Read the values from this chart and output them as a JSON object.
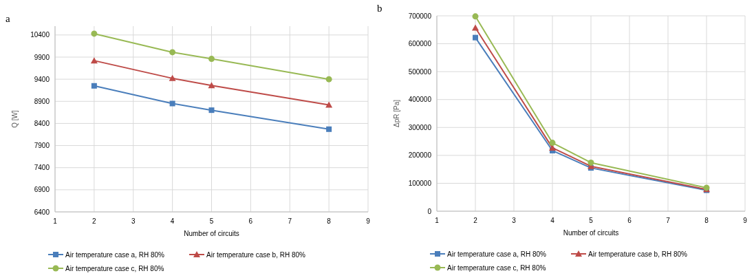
{
  "chart_data": [
    {
      "type": "line",
      "title": "a",
      "xlabel": "Number of circuits",
      "ylabel": "Q [W]",
      "x": [
        2,
        4,
        5,
        8
      ],
      "xlim": [
        1,
        9
      ],
      "xticks": [
        1,
        2,
        3,
        4,
        5,
        6,
        7,
        8,
        9
      ],
      "ylim": [
        6400,
        10600
      ],
      "yticks": [
        6400,
        6900,
        7400,
        7900,
        8400,
        8900,
        9400,
        9900,
        10400
      ],
      "grid": true,
      "legend": "bottom",
      "series": [
        {
          "name": "Air temperature case a, RH 80%",
          "color": "#4a7ebb",
          "marker": "square",
          "values": [
            9250,
            8850,
            8700,
            8270
          ]
        },
        {
          "name": "Air temperature case b, RH 80%",
          "color": "#be4b48",
          "marker": "triangle",
          "values": [
            9820,
            9420,
            9260,
            8820
          ]
        },
        {
          "name": "Air temperature case c, RH 80%",
          "color": "#98b954",
          "marker": "circle",
          "values": [
            10430,
            10010,
            9860,
            9400
          ]
        }
      ]
    },
    {
      "type": "line",
      "title": "b",
      "xlabel": "Number of circuits",
      "ylabel": "ΔpR  [Pa]",
      "x": [
        2,
        4,
        5,
        8
      ],
      "xlim": [
        1,
        9
      ],
      "xticks": [
        1,
        2,
        3,
        4,
        5,
        6,
        7,
        8,
        9
      ],
      "ylim": [
        0,
        700000
      ],
      "yticks": [
        0,
        100000,
        200000,
        300000,
        400000,
        500000,
        600000,
        700000
      ],
      "grid": true,
      "legend": "bottom",
      "series": [
        {
          "name": "Air temperature case a, RH 80%",
          "color": "#4a7ebb",
          "marker": "square",
          "values": [
            622000,
            217000,
            155000,
            75000
          ]
        },
        {
          "name": "Air temperature case b, RH 80%",
          "color": "#be4b48",
          "marker": "triangle",
          "values": [
            657000,
            227000,
            161000,
            78000
          ]
        },
        {
          "name": "Air temperature case c, RH 80%",
          "color": "#98b954",
          "marker": "circle",
          "values": [
            698000,
            245000,
            174000,
            84000
          ]
        }
      ]
    }
  ]
}
